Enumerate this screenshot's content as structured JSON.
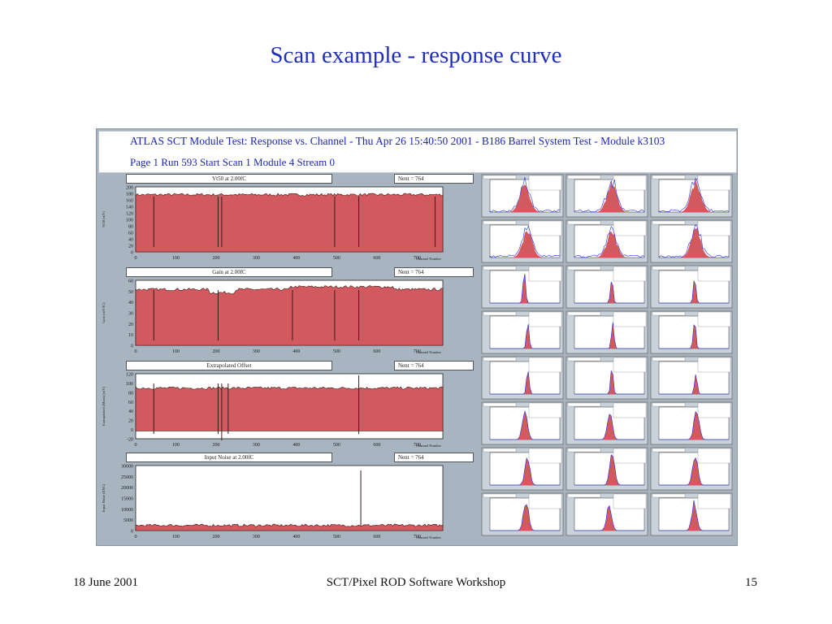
{
  "slide": {
    "title": "Scan example - response curve",
    "footer_date": "18 June 2001",
    "footer_event": "SCT/Pixel ROD Software Workshop",
    "footer_page": "15"
  },
  "header": {
    "line1": "ATLAS SCT Module Test:  Response vs. Channel  -  Thu Apr 26 15:40:50 2001   -  B186 Barrel System Test  -  Module k3103",
    "line2": "Page 1    Run 593    Start Scan 1    Module 4    Stream 0"
  },
  "panels": [
    {
      "title": "Vt50 at 2.00fC",
      "stats": "Nent = 764",
      "ylabel": "Vt50 (mV)",
      "xlabel": "Channel Number",
      "yticks": [
        "200",
        "180",
        "160",
        "140",
        "120",
        "100",
        "80",
        "60",
        "40",
        "20",
        "0"
      ],
      "xticks": [
        "0",
        "100",
        "200",
        "300",
        "400",
        "500",
        "600",
        "700"
      ]
    },
    {
      "title": "Gain at 2.00fC",
      "stats": "Nent = 764",
      "ylabel": "Gain (mV/fC)",
      "xlabel": "Channel Number",
      "yticks": [
        "60",
        "50",
        "40",
        "30",
        "20",
        "10",
        "0"
      ],
      "xticks": [
        "0",
        "100",
        "200",
        "300",
        "400",
        "500",
        "600",
        "700"
      ]
    },
    {
      "title": "Extrapolated Offset",
      "stats": "Nent = 764",
      "ylabel": "Extrapolated (Mean) (mV)",
      "xlabel": "Channel Number",
      "yticks": [
        "120",
        "100",
        "80",
        "60",
        "40",
        "20",
        "0",
        "-20"
      ],
      "xticks": [
        "0",
        "100",
        "200",
        "300",
        "400",
        "500",
        "600",
        "700"
      ]
    },
    {
      "title": "Input Noise at 2.00fC",
      "stats": "Nent = 764",
      "ylabel": "Input Noise (ENC)",
      "xlabel": "Channel Number",
      "yticks": [
        "30000",
        "25000",
        "20000",
        "15000",
        "10000",
        "5000",
        "0"
      ],
      "xticks": [
        "0",
        "100",
        "200",
        "300",
        "400",
        "500",
        "600",
        "700"
      ]
    }
  ],
  "colors": {
    "fill": "#d25a5e",
    "line": "#3a1a1a",
    "blue": "#2030e0",
    "canvas": "#a8b4c0",
    "title": "#1f2fb8"
  }
}
